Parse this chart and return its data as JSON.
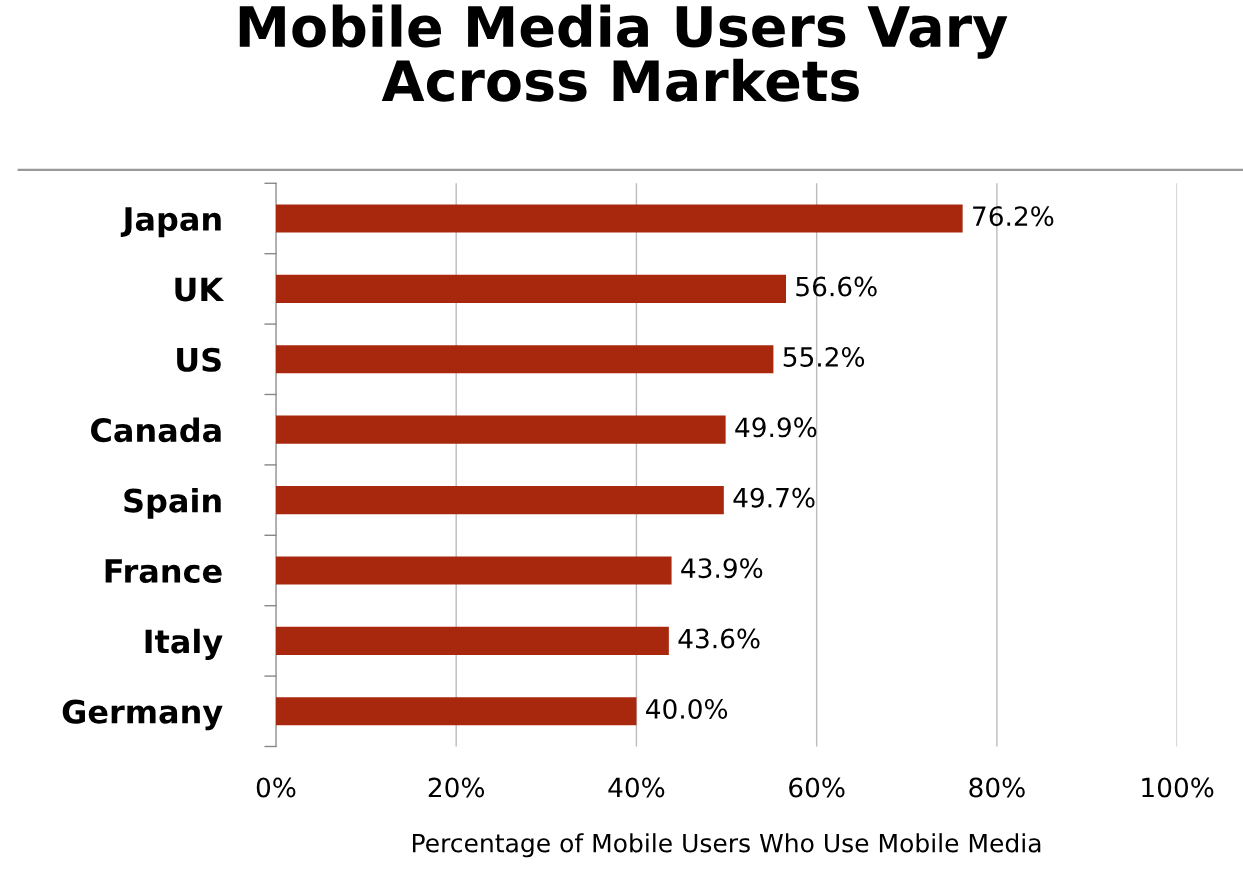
{
  "chart_data": {
    "type": "bar",
    "orientation": "horizontal",
    "title": "Mobile Media Users Vary\nAcross Markets",
    "xlabel": "Percentage of Mobile Users Who Use Mobile Media",
    "categories": [
      "Japan",
      "UK",
      "US",
      "Canada",
      "Spain",
      "France",
      "Italy",
      "Germany"
    ],
    "values": [
      76.2,
      56.6,
      55.2,
      49.9,
      49.7,
      43.9,
      43.6,
      40.0
    ],
    "value_labels": [
      "76.2%",
      "56.6%",
      "55.2%",
      "49.9%",
      "49.7%",
      "43.9%",
      "43.6%",
      "40.0%"
    ],
    "color": "#a8280e",
    "xlim": [
      0,
      100
    ],
    "xticks": [
      {
        "value": 0,
        "label": "0%"
      },
      {
        "value": 20,
        "label": "20%"
      },
      {
        "value": 40,
        "label": "40%"
      },
      {
        "value": 60,
        "label": "60%"
      },
      {
        "value": 80,
        "label": "80%"
      },
      {
        "value": 100,
        "label": "100%"
      }
    ],
    "grid": "x",
    "legend": false
  }
}
